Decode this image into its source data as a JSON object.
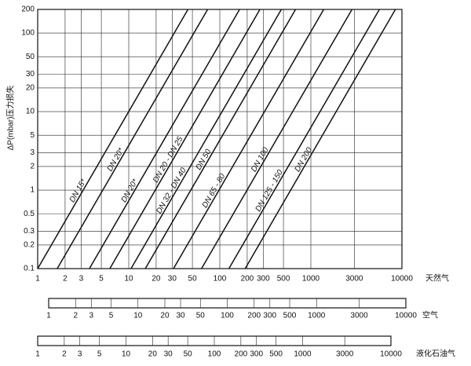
{
  "chart_data": {
    "type": "line",
    "y_label": "ΔP(mbar)压力损失",
    "x_label": "天然气",
    "log_x": true,
    "log_y": true,
    "grid": true,
    "color": "#111111",
    "xlim": [
      1,
      10000
    ],
    "xticks": [
      1,
      2,
      3,
      5,
      10,
      20,
      30,
      50,
      100,
      200,
      300,
      500,
      1000,
      3000,
      10000
    ],
    "ylim": [
      0.1,
      200
    ],
    "yticks": [
      0.1,
      0.2,
      0.3,
      0.5,
      1,
      2,
      3,
      5,
      10,
      20,
      30,
      50,
      100,
      200
    ],
    "series": [
      {
        "name": "DN 15*",
        "x": [
          1.0,
          44.7
        ],
        "values": [
          0.1,
          200
        ]
      },
      {
        "name": "DN 20*",
        "x": [
          1.64,
          73.5
        ],
        "values": [
          0.1,
          200
        ]
      },
      {
        "name": "DN 20*",
        "x": [
          3.7,
          165
        ],
        "values": [
          0.1,
          200
        ]
      },
      {
        "name": "DN 20 - DN 25",
        "x": [
          6.2,
          276
        ],
        "values": [
          0.1,
          200
        ]
      },
      {
        "name": "DN 32 - DN 40",
        "x": [
          10.6,
          474
        ],
        "values": [
          0.1,
          200
        ]
      },
      {
        "name": "DN 50",
        "x": [
          15.2,
          679
        ],
        "values": [
          0.1,
          200
        ]
      },
      {
        "name": "DN 65 - 80",
        "x": [
          31,
          1386
        ],
        "values": [
          0.1,
          200
        ]
      },
      {
        "name": "DN 100",
        "x": [
          63,
          2828
        ],
        "values": [
          0.1,
          200
        ]
      },
      {
        "name": "DN 125 - 150",
        "x": [
          126,
          5657
        ],
        "values": [
          0.1,
          200
        ]
      },
      {
        "name": "DN 200",
        "x": [
          190,
          8485
        ],
        "values": [
          0.1,
          200
        ]
      }
    ],
    "scales": [
      {
        "label": "空气",
        "xlim": [
          1,
          10000
        ],
        "xticks": [
          1,
          2,
          3,
          5,
          10,
          20,
          30,
          50,
          100,
          200,
          300,
          500,
          1000,
          3000,
          10000
        ]
      },
      {
        "label": "液化石油气",
        "xlim": [
          1,
          10000
        ],
        "xticks": [
          1,
          2,
          3,
          5,
          10,
          20,
          30,
          50,
          100,
          200,
          300,
          500,
          1000,
          3000,
          10000
        ]
      }
    ]
  }
}
